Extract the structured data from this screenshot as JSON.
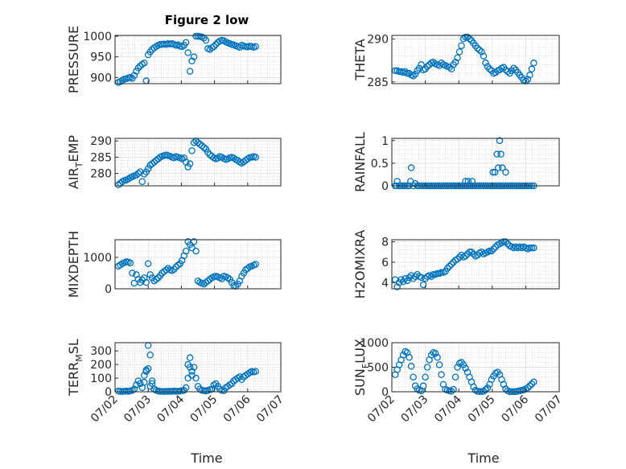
{
  "figure_title": "Figure 2 low",
  "x_tick_labels": [
    "07/02",
    "07/03",
    "07/04",
    "07/05",
    "07/06",
    "07/07"
  ],
  "x_label": "Time",
  "marker_color": "#0072BD",
  "chart_data": [
    {
      "type": "scatter",
      "name": "PRESSURE",
      "ylabel": "PRESSURE",
      "xlim": [
        0,
        5
      ],
      "ylim": [
        885,
        1002
      ],
      "yticks": [
        900,
        950,
        1000
      ],
      "grid": true,
      "x": [
        0.1,
        0.16,
        0.22,
        0.28,
        0.34,
        0.4,
        0.46,
        0.52,
        0.58,
        0.64,
        0.7,
        0.76,
        0.82,
        0.88,
        0.94,
        1.0,
        1.06,
        1.12,
        1.18,
        1.24,
        1.3,
        1.36,
        1.42,
        1.48,
        1.54,
        1.6,
        1.66,
        1.72,
        1.78,
        1.84,
        1.9,
        1.96,
        2.02,
        2.08,
        2.14,
        2.2,
        2.26,
        2.32,
        2.38,
        2.44,
        2.5,
        2.56,
        2.62,
        2.68,
        2.74,
        2.8,
        2.86,
        2.92,
        2.98,
        3.04,
        3.1,
        3.16,
        3.22,
        3.28,
        3.34,
        3.4,
        3.46,
        3.52,
        3.58,
        3.64,
        3.7,
        3.76,
        3.82,
        3.88,
        3.94,
        4.0,
        4.06,
        4.12,
        4.18,
        4.24
      ],
      "y": [
        888,
        890,
        893,
        896,
        897,
        899,
        900,
        898,
        905,
        915,
        923,
        928,
        932,
        935,
        892,
        955,
        962,
        968,
        972,
        975,
        978,
        980,
        980,
        981,
        980,
        982,
        981,
        982,
        980,
        978,
        979,
        976,
        975,
        978,
        985,
        960,
        915,
        940,
        950,
        1000,
        1000,
        999,
        998,
        996,
        990,
        970,
        968,
        972,
        975,
        980,
        985,
        988,
        990,
        989,
        986,
        984,
        982,
        980,
        979,
        977,
        975,
        973,
        978,
        976,
        975,
        974,
        976,
        975,
        973,
        975
      ]
    },
    {
      "type": "scatter",
      "name": "THETA",
      "ylabel": "THETA",
      "xlim": [
        0,
        5
      ],
      "ylim": [
        284.8,
        290.4
      ],
      "yticks": [
        285,
        290
      ],
      "grid": true,
      "x": [
        0.1,
        0.16,
        0.22,
        0.28,
        0.34,
        0.4,
        0.46,
        0.52,
        0.58,
        0.64,
        0.7,
        0.76,
        0.82,
        0.88,
        0.94,
        1.0,
        1.06,
        1.12,
        1.18,
        1.24,
        1.3,
        1.36,
        1.42,
        1.48,
        1.54,
        1.6,
        1.66,
        1.72,
        1.78,
        1.84,
        1.9,
        1.96,
        2.02,
        2.08,
        2.14,
        2.2,
        2.26,
        2.32,
        2.38,
        2.44,
        2.5,
        2.56,
        2.62,
        2.68,
        2.74,
        2.8,
        2.86,
        2.92,
        2.98,
        3.04,
        3.1,
        3.16,
        3.22,
        3.28,
        3.34,
        3.4,
        3.46,
        3.52,
        3.58,
        3.64,
        3.7,
        3.76,
        3.82,
        3.88,
        3.94,
        4.0,
        4.06,
        4.12,
        4.18,
        4.24
      ],
      "y": [
        286.3,
        286.3,
        286.2,
        286.2,
        286.1,
        286.2,
        286.0,
        286.0,
        285.8,
        285.7,
        285.9,
        286.3,
        286.6,
        287.0,
        286.4,
        286.5,
        286.8,
        287.0,
        287.2,
        287.3,
        287.1,
        287.0,
        286.9,
        287.2,
        287.0,
        286.9,
        286.8,
        286.7,
        286.5,
        287.0,
        287.3,
        287.8,
        288.5,
        289.2,
        290.0,
        290.2,
        290.2,
        290.0,
        289.8,
        289.5,
        289.2,
        288.9,
        288.7,
        288.5,
        288.0,
        287.2,
        286.8,
        286.5,
        286.3,
        286.0,
        286.1,
        286.3,
        286.4,
        286.6,
        286.7,
        286.4,
        286.2,
        286.0,
        286.3,
        286.6,
        286.4,
        286.1,
        285.8,
        285.5,
        285.2,
        285.1,
        285.3,
        285.8,
        286.5,
        287.2
      ]
    },
    {
      "type": "scatter",
      "name": "AIR_TEMP",
      "ylabel_main": "AIR",
      "ylabel_sub": "T",
      "ylabel_rest": "EMP",
      "xlim": [
        0,
        5
      ],
      "ylim": [
        276.2,
        290.8
      ],
      "yticks": [
        280,
        285,
        290
      ],
      "grid": true,
      "x": [
        0.1,
        0.16,
        0.22,
        0.28,
        0.34,
        0.4,
        0.46,
        0.52,
        0.58,
        0.64,
        0.7,
        0.76,
        0.82,
        0.88,
        0.94,
        1.0,
        1.06,
        1.12,
        1.18,
        1.24,
        1.3,
        1.36,
        1.42,
        1.48,
        1.54,
        1.6,
        1.66,
        1.72,
        1.78,
        1.84,
        1.9,
        1.96,
        2.02,
        2.08,
        2.14,
        2.2,
        2.26,
        2.32,
        2.38,
        2.44,
        2.5,
        2.56,
        2.62,
        2.68,
        2.74,
        2.8,
        2.86,
        2.92,
        2.98,
        3.04,
        3.1,
        3.16,
        3.22,
        3.28,
        3.34,
        3.4,
        3.46,
        3.52,
        3.58,
        3.64,
        3.7,
        3.76,
        3.82,
        3.88,
        3.94,
        4.0,
        4.06,
        4.12,
        4.18,
        4.24
      ],
      "y": [
        276.5,
        277.0,
        277.5,
        277.8,
        278.0,
        278.3,
        278.7,
        279.0,
        279.3,
        279.5,
        280.0,
        280.5,
        277.5,
        279.8,
        280.5,
        281.5,
        282.5,
        283.0,
        283.5,
        284.0,
        284.5,
        285.0,
        285.3,
        285.5,
        285.7,
        285.5,
        285.3,
        285.0,
        284.8,
        285.2,
        285.0,
        284.8,
        284.5,
        284.8,
        283.5,
        282.0,
        283.0,
        287.0,
        289.5,
        290.0,
        289.5,
        289.0,
        288.5,
        288.0,
        287.5,
        286.5,
        285.8,
        285.3,
        284.8,
        284.5,
        284.7,
        285.2,
        285.0,
        284.6,
        284.3,
        284.5,
        284.8,
        285.0,
        284.7,
        284.3,
        284.0,
        283.5,
        283.2,
        283.6,
        284.0,
        284.5,
        284.9,
        285.0,
        285.2,
        285.0
      ]
    },
    {
      "type": "scatter",
      "name": "RAINFALL",
      "ylabel": "RAINFALL",
      "xlim": [
        0,
        5
      ],
      "ylim": [
        0,
        1.05
      ],
      "yticks": [
        0,
        0.5,
        1
      ],
      "grid": true,
      "x": [
        0.1,
        0.16,
        0.22,
        0.28,
        0.34,
        0.4,
        0.46,
        0.52,
        0.58,
        0.64,
        0.7,
        0.76,
        0.82,
        0.88,
        0.94,
        1.0,
        1.06,
        1.12,
        1.18,
        1.24,
        1.3,
        1.36,
        1.42,
        1.48,
        1.54,
        1.6,
        1.66,
        1.72,
        1.78,
        1.84,
        1.9,
        1.96,
        2.02,
        2.08,
        2.14,
        2.2,
        2.26,
        2.32,
        2.38,
        2.44,
        2.5,
        2.56,
        2.62,
        2.68,
        2.74,
        2.8,
        2.86,
        2.92,
        2.98,
        3.04,
        3.1,
        3.16,
        3.22,
        3.28,
        3.34,
        3.4,
        3.46,
        3.52,
        3.58,
        3.64,
        3.7,
        3.76,
        3.82,
        3.88,
        3.94,
        4.0,
        4.06,
        4.12,
        4.18,
        4.24,
        0.14,
        0.56,
        2.2,
        2.28,
        2.4,
        3.02,
        3.08,
        3.14,
        3.18,
        3.22,
        3.26,
        3.3,
        3.4
      ],
      "y": [
        0,
        0.1,
        0,
        0,
        0,
        0,
        0,
        0,
        0.4,
        0,
        0.05,
        0,
        0,
        0,
        0,
        0,
        0,
        0,
        0,
        0,
        0,
        0,
        0,
        0,
        0,
        0,
        0,
        0,
        0,
        0,
        0,
        0,
        0,
        0,
        0,
        0,
        0,
        0,
        0,
        0,
        0,
        0,
        0,
        0,
        0,
        0,
        0,
        0,
        0,
        0,
        0,
        0,
        0,
        0,
        0,
        0,
        0,
        0,
        0,
        0,
        0,
        0,
        0,
        0,
        0,
        0,
        0,
        0,
        0,
        0,
        0,
        0.1,
        0.1,
        0.1,
        0.1,
        0.3,
        0.3,
        0.7,
        0.4,
        1.0,
        0.7,
        0.4,
        0.3
      ]
    },
    {
      "type": "scatter",
      "name": "MIXDEPTH",
      "ylabel": "MIXDEPTH",
      "xlim": [
        0,
        5
      ],
      "ylim": [
        0,
        1560
      ],
      "yticks": [
        0,
        1000
      ],
      "grid": true,
      "x": [
        0.1,
        0.16,
        0.22,
        0.28,
        0.34,
        0.4,
        0.46,
        0.52,
        0.58,
        0.64,
        0.7,
        0.76,
        0.82,
        0.88,
        0.94,
        1.0,
        1.06,
        1.12,
        1.18,
        1.24,
        1.3,
        1.36,
        1.42,
        1.48,
        1.54,
        1.6,
        1.66,
        1.72,
        1.78,
        1.84,
        1.9,
        1.96,
        2.02,
        2.08,
        2.14,
        2.2,
        2.26,
        2.32,
        2.38,
        2.44,
        2.5,
        2.56,
        2.62,
        2.68,
        2.74,
        2.8,
        2.86,
        2.92,
        2.98,
        3.04,
        3.1,
        3.16,
        3.22,
        3.28,
        3.34,
        3.4,
        3.46,
        3.52,
        3.58,
        3.64,
        3.7,
        3.76,
        3.82,
        3.88,
        3.94,
        4.0,
        4.06,
        4.12,
        4.18,
        4.24
      ],
      "y": [
        720,
        760,
        800,
        830,
        860,
        850,
        820,
        500,
        180,
        450,
        300,
        200,
        280,
        350,
        200,
        800,
        450,
        350,
        250,
        300,
        350,
        420,
        500,
        550,
        600,
        650,
        600,
        580,
        620,
        700,
        750,
        800,
        900,
        1050,
        1200,
        1500,
        1400,
        1300,
        1500,
        1200,
        250,
        200,
        180,
        150,
        200,
        250,
        300,
        350,
        380,
        400,
        380,
        350,
        320,
        400,
        380,
        350,
        300,
        200,
        100,
        80,
        150,
        250,
        400,
        500,
        600,
        650,
        700,
        720,
        750,
        780
      ]
    },
    {
      "type": "scatter",
      "name": "H2OMIXRA",
      "ylabel": "H2OMIXRA",
      "xlim": [
        0,
        5
      ],
      "ylim": [
        3.4,
        8.2
      ],
      "yticks": [
        4,
        6,
        8
      ],
      "grid": true,
      "x": [
        0.1,
        0.16,
        0.22,
        0.28,
        0.34,
        0.4,
        0.46,
        0.52,
        0.58,
        0.64,
        0.7,
        0.76,
        0.82,
        0.88,
        0.94,
        1.0,
        1.06,
        1.12,
        1.18,
        1.24,
        1.3,
        1.36,
        1.42,
        1.48,
        1.54,
        1.6,
        1.66,
        1.72,
        1.78,
        1.84,
        1.9,
        1.96,
        2.02,
        2.08,
        2.14,
        2.2,
        2.26,
        2.32,
        2.38,
        2.44,
        2.5,
        2.56,
        2.62,
        2.68,
        2.74,
        2.8,
        2.86,
        2.92,
        2.98,
        3.04,
        3.1,
        3.16,
        3.22,
        3.28,
        3.34,
        3.4,
        3.46,
        3.52,
        3.58,
        3.64,
        3.7,
        3.76,
        3.82,
        3.88,
        3.94,
        4.0,
        4.06,
        4.12,
        4.18,
        4.24
      ],
      "y": [
        4.3,
        3.6,
        4.0,
        4.3,
        4.1,
        4.4,
        4.2,
        4.5,
        4.7,
        4.4,
        4.6,
        4.8,
        4.6,
        4.5,
        3.8,
        4.4,
        4.6,
        4.7,
        4.6,
        4.8,
        4.8,
        4.9,
        4.9,
        5.0,
        5.0,
        5.1,
        5.4,
        5.6,
        5.8,
        6.0,
        6.2,
        6.3,
        6.5,
        6.7,
        6.5,
        6.6,
        6.8,
        7.0,
        7.0,
        6.8,
        6.6,
        6.7,
        6.9,
        7.0,
        6.8,
        6.9,
        7.0,
        7.1,
        7.1,
        7.3,
        7.5,
        7.7,
        7.8,
        7.9,
        8.0,
        8.0,
        7.8,
        7.6,
        7.5,
        7.4,
        7.5,
        7.4,
        7.5,
        7.4,
        7.5,
        7.4,
        7.3,
        7.4,
        7.4,
        7.4
      ]
    },
    {
      "type": "scatter",
      "name": "TERR_MSL",
      "ylabel_main": "TERR",
      "ylabel_sub": "M",
      "ylabel_rest": "SL",
      "xlim": [
        0,
        5
      ],
      "ylim": [
        0,
        360
      ],
      "yticks": [
        0,
        100,
        200,
        300
      ],
      "grid": true,
      "x": [
        0.1,
        0.16,
        0.22,
        0.28,
        0.34,
        0.4,
        0.46,
        0.52,
        0.58,
        0.64,
        0.7,
        0.76,
        0.82,
        0.88,
        0.94,
        1.0,
        1.06,
        1.12,
        1.18,
        1.24,
        1.3,
        1.36,
        1.42,
        1.48,
        1.54,
        1.6,
        1.66,
        1.72,
        1.78,
        1.84,
        1.9,
        1.96,
        2.02,
        2.08,
        2.14,
        2.2,
        2.26,
        2.32,
        2.38,
        2.44,
        2.5,
        2.56,
        2.62,
        2.68,
        2.74,
        2.8,
        2.86,
        2.92,
        2.98,
        3.04,
        3.1,
        3.16,
        3.22,
        3.28,
        3.34,
        3.4,
        3.46,
        3.52,
        3.58,
        3.64,
        3.7,
        3.76,
        3.82,
        3.88,
        3.94,
        4.0,
        4.06,
        4.12,
        4.18,
        4.24,
        0.88,
        0.94,
        1.0,
        1.06,
        1.12,
        2.2,
        2.26,
        2.32
      ],
      "y": [
        5,
        3,
        2,
        4,
        5,
        3,
        6,
        10,
        20,
        50,
        80,
        60,
        30,
        120,
        150,
        340,
        270,
        80,
        20,
        10,
        5,
        3,
        2,
        2,
        3,
        2,
        4,
        3,
        5,
        3,
        4,
        5,
        8,
        10,
        30,
        100,
        250,
        150,
        180,
        100,
        40,
        20,
        10,
        8,
        6,
        10,
        15,
        20,
        50,
        60,
        40,
        20,
        10,
        8,
        30,
        40,
        50,
        60,
        80,
        90,
        100,
        110,
        90,
        110,
        120,
        130,
        140,
        150,
        145,
        150,
        70,
        160,
        170,
        40,
        60,
        200,
        180,
        120
      ]
    },
    {
      "type": "scatter",
      "name": "SUN_FLUX",
      "ylabel_main": "SUN",
      "ylabel_sub": "F",
      "ylabel_rest": "LUX",
      "xlim": [
        0,
        5
      ],
      "ylim": [
        0,
        1000
      ],
      "yticks": [
        0,
        500,
        1000
      ],
      "grid": true,
      "x": [
        0.1,
        0.16,
        0.22,
        0.28,
        0.34,
        0.4,
        0.46,
        0.52,
        0.58,
        0.64,
        0.7,
        0.76,
        0.82,
        0.88,
        0.94,
        1.0,
        1.06,
        1.12,
        1.18,
        1.24,
        1.3,
        1.36,
        1.42,
        1.48,
        1.54,
        1.6,
        1.66,
        1.72,
        1.78,
        1.84,
        1.9,
        1.96,
        2.02,
        2.08,
        2.14,
        2.2,
        2.26,
        2.32,
        2.38,
        2.44,
        2.5,
        2.56,
        2.62,
        2.68,
        2.74,
        2.8,
        2.86,
        2.92,
        2.98,
        3.04,
        3.1,
        3.16,
        3.22,
        3.28,
        3.34,
        3.4,
        3.46,
        3.52,
        3.58,
        3.64,
        3.7,
        3.76,
        3.82,
        3.88,
        3.94,
        4.0,
        4.06,
        4.12,
        4.18,
        4.24
      ],
      "y": [
        350,
        450,
        550,
        650,
        750,
        820,
        800,
        700,
        520,
        300,
        120,
        60,
        30,
        20,
        120,
        300,
        500,
        650,
        750,
        800,
        780,
        700,
        550,
        350,
        150,
        50,
        30,
        20,
        10,
        50,
        300,
        500,
        580,
        600,
        550,
        480,
        400,
        300,
        200,
        100,
        30,
        10,
        5,
        5,
        10,
        40,
        80,
        150,
        250,
        320,
        380,
        400,
        350,
        250,
        150,
        60,
        20,
        5,
        3,
        2,
        5,
        10,
        20,
        30,
        40,
        60,
        80,
        120,
        160,
        200
      ]
    }
  ]
}
